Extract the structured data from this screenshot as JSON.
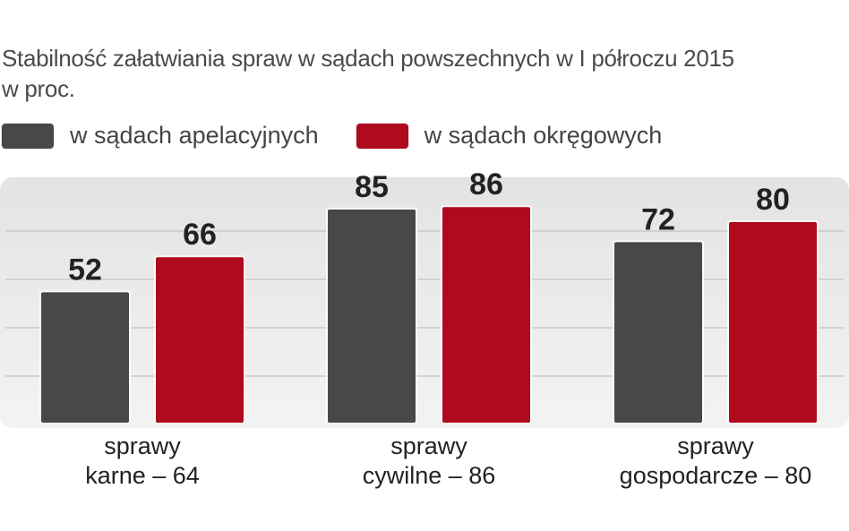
{
  "title_line1": "Stabilność załatwiania spraw w sądach powszechnych w I półroczu 2015",
  "title_line2": "w proc.",
  "colors": {
    "apelacyjne": "#48484a",
    "okregowe": "#b00a1e"
  },
  "chart_data": {
    "type": "bar",
    "title": "Stabilność załatwiania spraw w sądach powszechnych w I półroczu 2015",
    "ylabel": "w proc.",
    "ylim": [
      0,
      100
    ],
    "grid": true,
    "legend_placement": "top-left",
    "categories": [
      [
        "sprawy",
        "karne – 64"
      ],
      [
        "sprawy",
        "cywilne – 86"
      ],
      [
        "sprawy",
        "gospodarcze – 80"
      ]
    ],
    "series": [
      {
        "name": "w sądach apelacyjnych",
        "color": "#48484a",
        "values": [
          52,
          85,
          72
        ]
      },
      {
        "name": "w sądach okręgowych",
        "color": "#b00a1e",
        "values": [
          66,
          86,
          80
        ]
      }
    ]
  }
}
